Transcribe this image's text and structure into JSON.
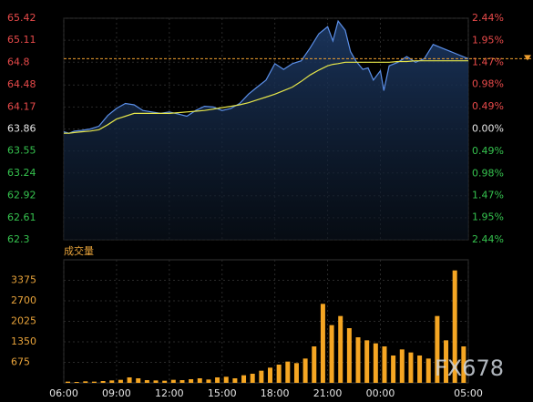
{
  "chart_data": [
    {
      "type": "line",
      "x": [
        0,
        0.3,
        0.6,
        1,
        1.5,
        2,
        2.5,
        3,
        3.5,
        4,
        4.5,
        5,
        5.5,
        6,
        6.5,
        7,
        7.5,
        8,
        8.5,
        9,
        9.5,
        10,
        10.5,
        11,
        11.5,
        12,
        12.5,
        13,
        13.5,
        14,
        14.5,
        15,
        15.3,
        15.6,
        16,
        16.3,
        16.6,
        17,
        17.3,
        17.6,
        18,
        18.2,
        18.5,
        19,
        19.5,
        20,
        20.5,
        21,
        21.5,
        22,
        22.5,
        23
      ],
      "series": [
        {
          "name": "price",
          "color": "#5b8fe8",
          "values": [
            63.82,
            63.8,
            63.83,
            63.84,
            63.86,
            63.9,
            64.05,
            64.15,
            64.22,
            64.2,
            64.12,
            64.1,
            64.08,
            64.1,
            64.07,
            64.04,
            64.12,
            64.18,
            64.17,
            64.12,
            64.15,
            64.22,
            64.35,
            64.45,
            64.55,
            64.78,
            64.7,
            64.78,
            64.82,
            65.0,
            65.2,
            65.3,
            65.1,
            65.38,
            65.25,
            64.95,
            64.82,
            64.7,
            64.72,
            64.55,
            64.68,
            64.4,
            64.75,
            64.8,
            64.88,
            64.8,
            64.85,
            65.05,
            65.0,
            64.95,
            64.9,
            64.85
          ]
        },
        {
          "name": "average",
          "color": "#e6e64a",
          "values": [
            63.8,
            63.8,
            63.81,
            63.82,
            63.83,
            63.85,
            63.92,
            64.0,
            64.04,
            64.08,
            64.08,
            64.08,
            64.08,
            64.08,
            64.09,
            64.1,
            64.11,
            64.12,
            64.14,
            64.16,
            64.18,
            64.2,
            64.23,
            64.27,
            64.31,
            64.35,
            64.4,
            64.45,
            64.53,
            64.62,
            64.69,
            64.75,
            64.77,
            64.78,
            64.8,
            64.8,
            64.8,
            64.8,
            64.8,
            64.8,
            64.8,
            64.8,
            64.8,
            64.81,
            64.81,
            64.82,
            64.82,
            64.82,
            64.82,
            64.82,
            64.82,
            64.82
          ]
        }
      ],
      "reference_line": 64.85,
      "xlim": [
        0,
        23
      ],
      "ylim": [
        62.3,
        65.42
      ],
      "yticks": [
        65.42,
        65.11,
        64.8,
        64.48,
        64.17,
        63.86,
        63.55,
        63.24,
        62.92,
        62.61,
        62.3
      ],
      "y2lim": [
        -2.44,
        2.44
      ],
      "y2ticks": [
        {
          "value": 2.44,
          "label": "2.44%"
        },
        {
          "value": 1.95,
          "label": "1.95%"
        },
        {
          "value": 1.47,
          "label": "1.47%"
        },
        {
          "value": 0.98,
          "label": "0.98%"
        },
        {
          "value": 0.49,
          "label": "0.49%"
        },
        {
          "value": 0,
          "label": "0.00%"
        },
        {
          "value": -0.49,
          "label": "0.49%"
        },
        {
          "value": -0.98,
          "label": "0.98%"
        },
        {
          "value": -1.47,
          "label": "1.47%"
        },
        {
          "value": -1.95,
          "label": "1.95%"
        },
        {
          "value": -2.44,
          "label": "2.44%"
        }
      ],
      "grid": true
    },
    {
      "type": "bar",
      "title": "成交量",
      "color": "#f5a623",
      "x": [
        0,
        0.5,
        1,
        1.5,
        2,
        2.5,
        3,
        3.5,
        4,
        4.5,
        5,
        5.5,
        6,
        6.5,
        7,
        7.5,
        8,
        8.5,
        9,
        9.5,
        10,
        10.5,
        11,
        11.5,
        12,
        12.5,
        13,
        13.5,
        14,
        14.5,
        15,
        15.5,
        16,
        16.5,
        17,
        17.5,
        18,
        18.5,
        19,
        19.5,
        20,
        20.5,
        21,
        21.5,
        22,
        22.5
      ],
      "values": [
        40,
        30,
        50,
        40,
        60,
        80,
        100,
        180,
        150,
        90,
        80,
        70,
        100,
        90,
        120,
        150,
        110,
        180,
        200,
        150,
        250,
        300,
        400,
        500,
        600,
        700,
        650,
        800,
        1200,
        2600,
        1900,
        2200,
        1800,
        1500,
        1400,
        1300,
        1200,
        900,
        1100,
        1000,
        900,
        800,
        2200,
        1400,
        3700,
        1200
      ],
      "xlim": [
        0,
        23
      ],
      "xticks": [
        {
          "value": 0,
          "label": "06:00"
        },
        {
          "value": 3,
          "label": "09:00"
        },
        {
          "value": 6,
          "label": "12:00"
        },
        {
          "value": 9,
          "label": "15:00"
        },
        {
          "value": 12,
          "label": "18:00"
        },
        {
          "value": 15,
          "label": "21:00"
        },
        {
          "value": 18,
          "label": "00:00"
        },
        {
          "value": 23,
          "label": "05:00"
        }
      ],
      "ylim": [
        0,
        4050
      ],
      "yticks": [
        675,
        1350,
        2025,
        2700,
        3375
      ],
      "grid": true,
      "watermark": "FX678"
    }
  ]
}
